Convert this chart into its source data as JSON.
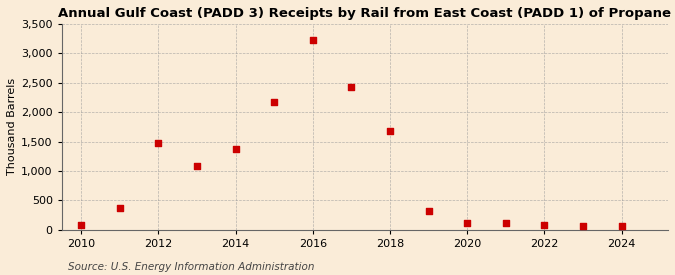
{
  "title": "Annual Gulf Coast (PADD 3) Receipts by Rail from East Coast (PADD 1) of Propane",
  "ylabel": "Thousand Barrels",
  "source": "Source: U.S. Energy Information Administration",
  "background_color": "#faecd8",
  "years": [
    2010,
    2011,
    2012,
    2013,
    2014,
    2015,
    2016,
    2017,
    2018,
    2019,
    2020,
    2021,
    2022,
    2023,
    2024
  ],
  "values": [
    75,
    370,
    1480,
    1090,
    1380,
    2175,
    3230,
    2420,
    1680,
    315,
    115,
    115,
    85,
    70,
    60
  ],
  "marker_color": "#cc0000",
  "marker": "s",
  "marker_size": 4,
  "xlim": [
    2009.5,
    2025.2
  ],
  "ylim": [
    0,
    3500
  ],
  "yticks": [
    0,
    500,
    1000,
    1500,
    2000,
    2500,
    3000,
    3500
  ],
  "xticks": [
    2010,
    2012,
    2014,
    2016,
    2018,
    2020,
    2022,
    2024
  ],
  "grid_color": "#999999",
  "title_fontsize": 9.5,
  "axis_fontsize": 8,
  "source_fontsize": 7.5
}
